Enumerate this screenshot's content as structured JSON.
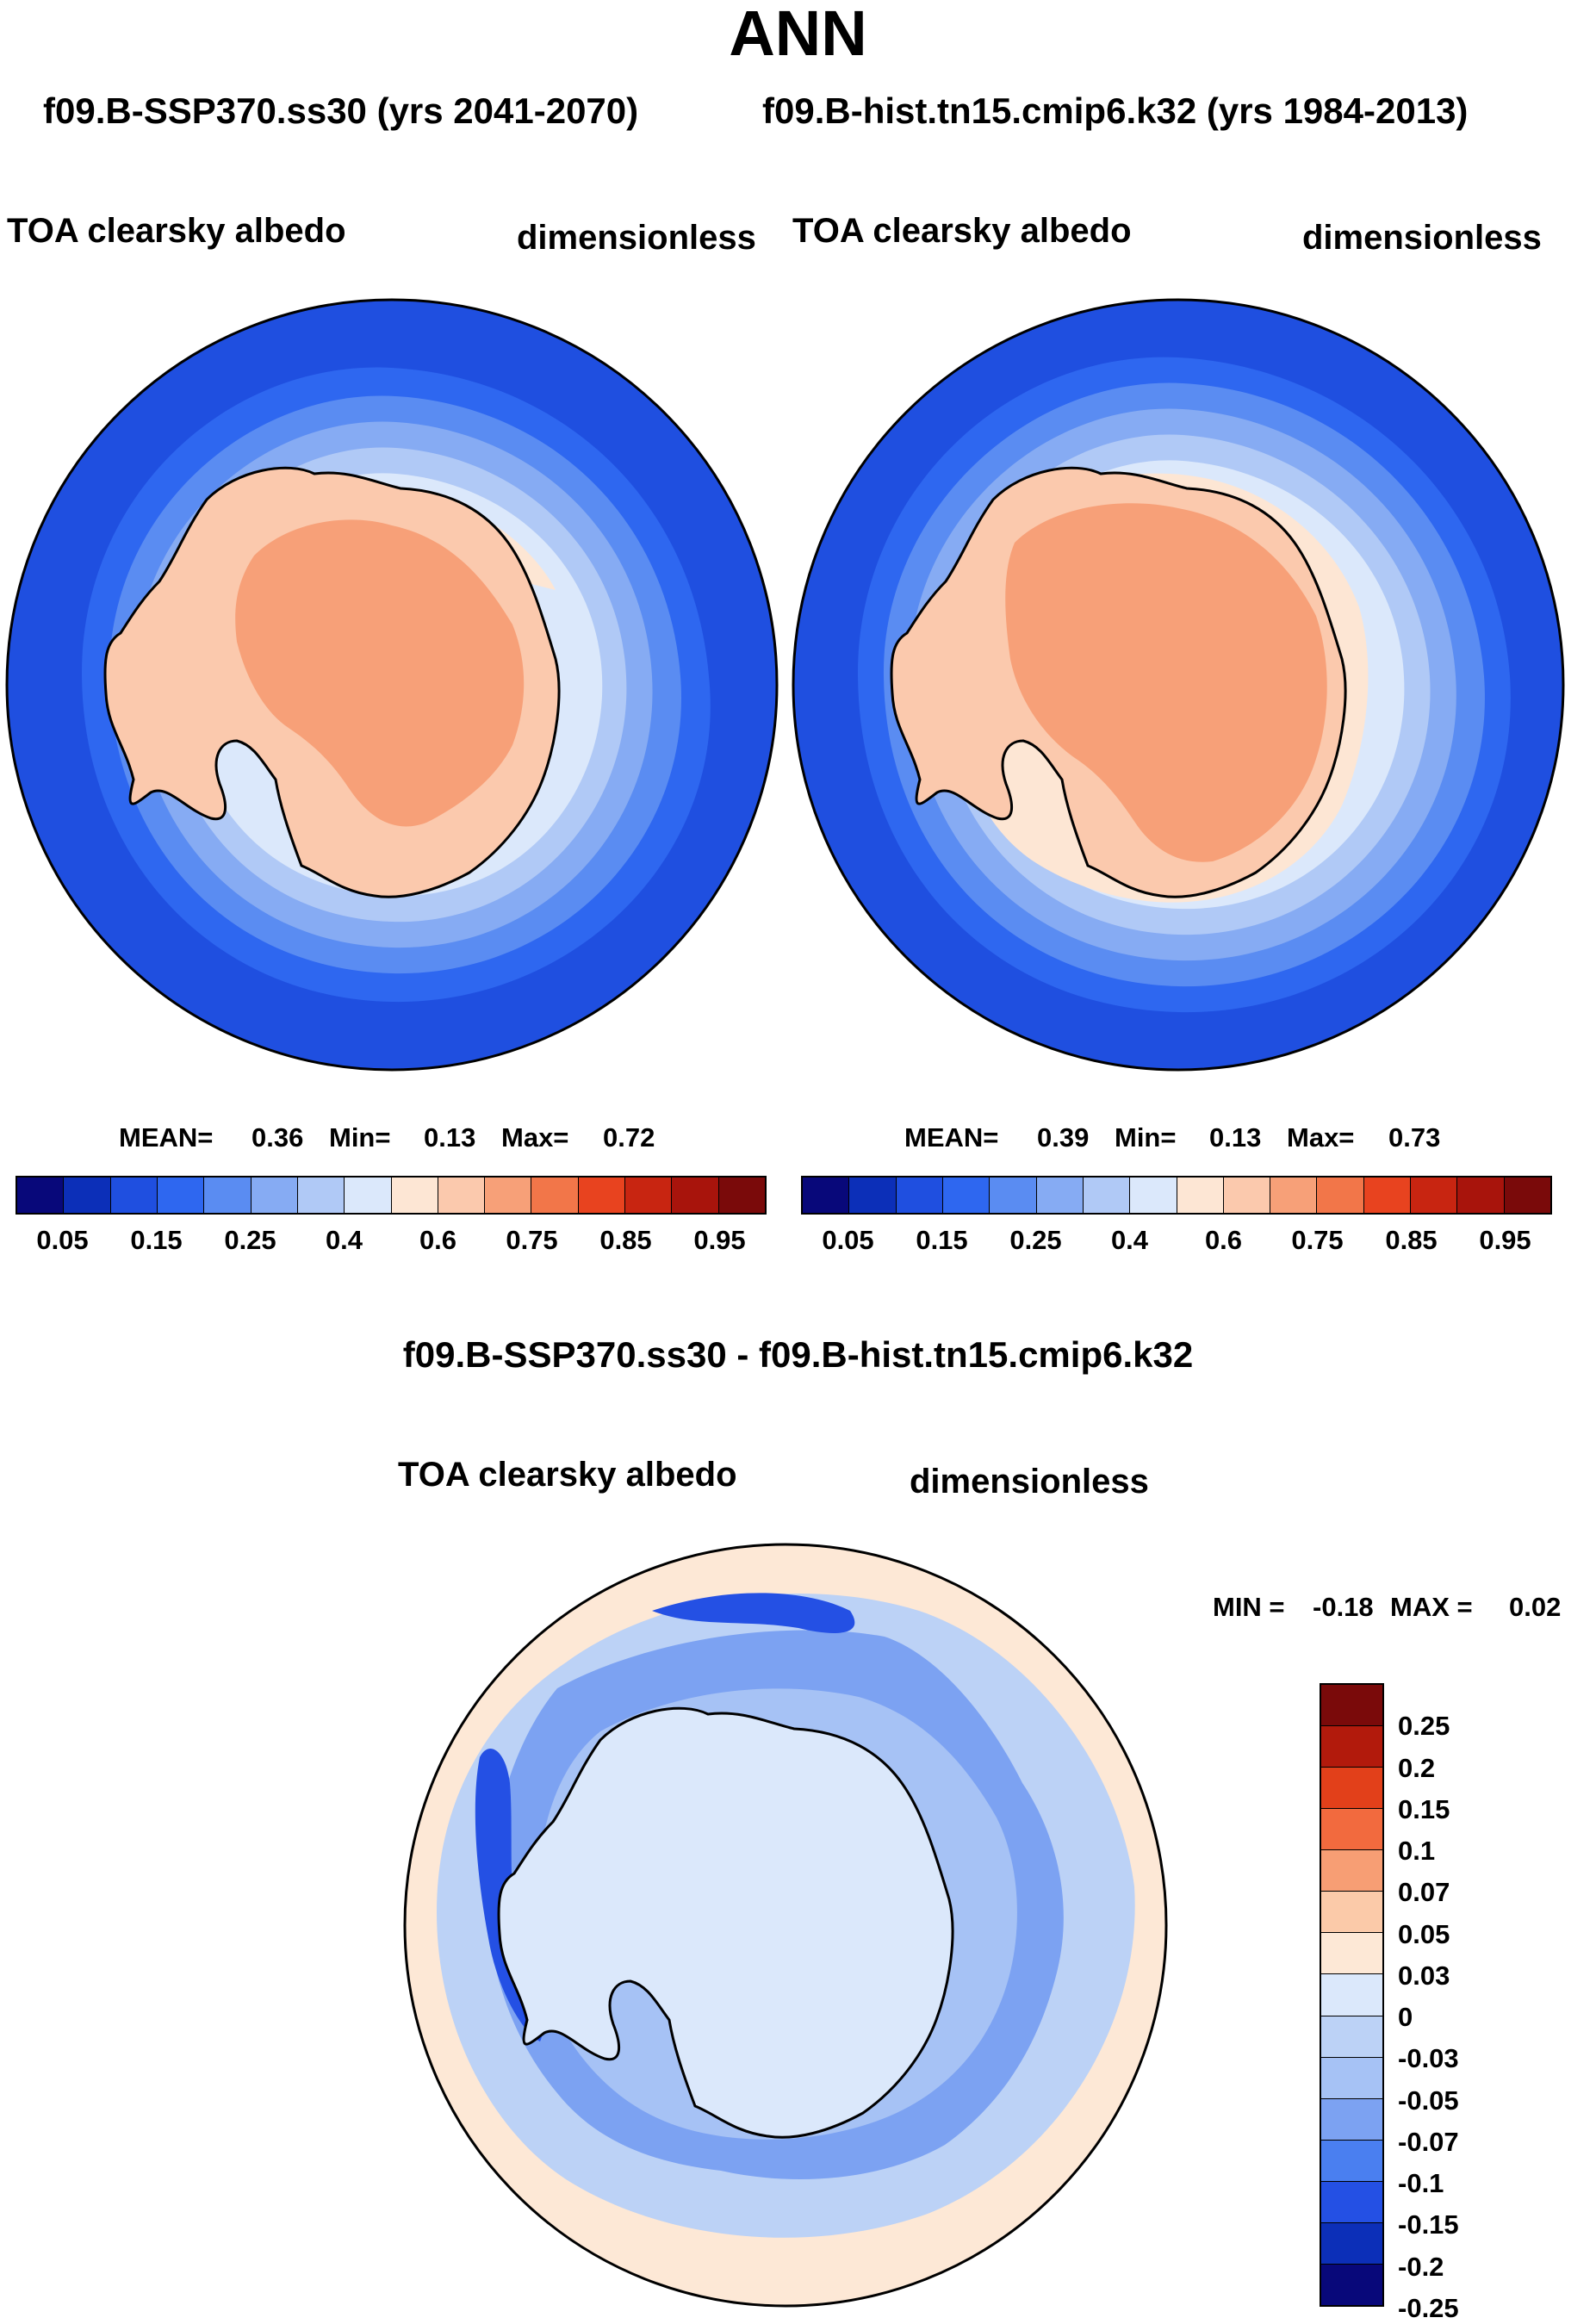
{
  "title": "ANN",
  "subtitles": {
    "left": "f09.B-SSP370.ss30 (yrs 2041-2070)",
    "right": "f09.B-hist.tn15.cmip6.k32 (yrs 1984-2013)"
  },
  "panels": [
    {
      "variable": "TOA clearsky albedo",
      "units": "dimensionless",
      "stats": {
        "mean_label": "MEAN=",
        "mean": "0.36",
        "min_label": "Min=",
        "min": "0.13",
        "max_label": "Max=",
        "max": "0.72"
      }
    },
    {
      "variable": "TOA clearsky albedo",
      "units": "dimensionless",
      "stats": {
        "mean_label": "MEAN=",
        "mean": "0.39",
        "min_label": "Min=",
        "min": "0.13",
        "max_label": "Max=",
        "max": "0.73"
      }
    }
  ],
  "diff_panel": {
    "title": "f09.B-SSP370.ss30 - f09.B-hist.tn15.cmip6.k32",
    "variable": "TOA clearsky albedo",
    "units": "dimensionless",
    "minmax": {
      "min_label": "MIN =",
      "min": "-0.18",
      "max_label": "MAX =",
      "max": "0.02"
    }
  },
  "colorbar_top": {
    "colors": [
      "#08087a",
      "#0c2fb8",
      "#1f4fe0",
      "#2e67f0",
      "#5a8cf2",
      "#86abf3",
      "#b0c9f6",
      "#dbe8fb",
      "#fde6d4",
      "#fbc9ad",
      "#f7a078",
      "#f27649",
      "#e8431f",
      "#c82511",
      "#a8140c",
      "#7a0a0a"
    ],
    "tick_labels": [
      "0.05",
      "0.15",
      "0.25",
      "0.4",
      "0.6",
      "0.75",
      "0.85",
      "0.95"
    ]
  },
  "colorbar_diff": {
    "colors": [
      "#7a0a0a",
      "#b21a0c",
      "#e2401a",
      "#f26a3e",
      "#f79e74",
      "#fbcaa9",
      "#fde8d6",
      "#dbe8fb",
      "#bcd2f6",
      "#a6c2f5",
      "#7ca2f2",
      "#4a7ff0",
      "#2450e4",
      "#0c2fb8",
      "#08087a"
    ],
    "tick_labels": [
      "0.25",
      "0.2",
      "0.15",
      "0.1",
      "0.07",
      "0.05",
      "0.03",
      "0",
      "-0.03",
      "-0.05",
      "-0.07",
      "-0.1",
      "-0.15",
      "-0.2",
      "-0.25"
    ]
  }
}
